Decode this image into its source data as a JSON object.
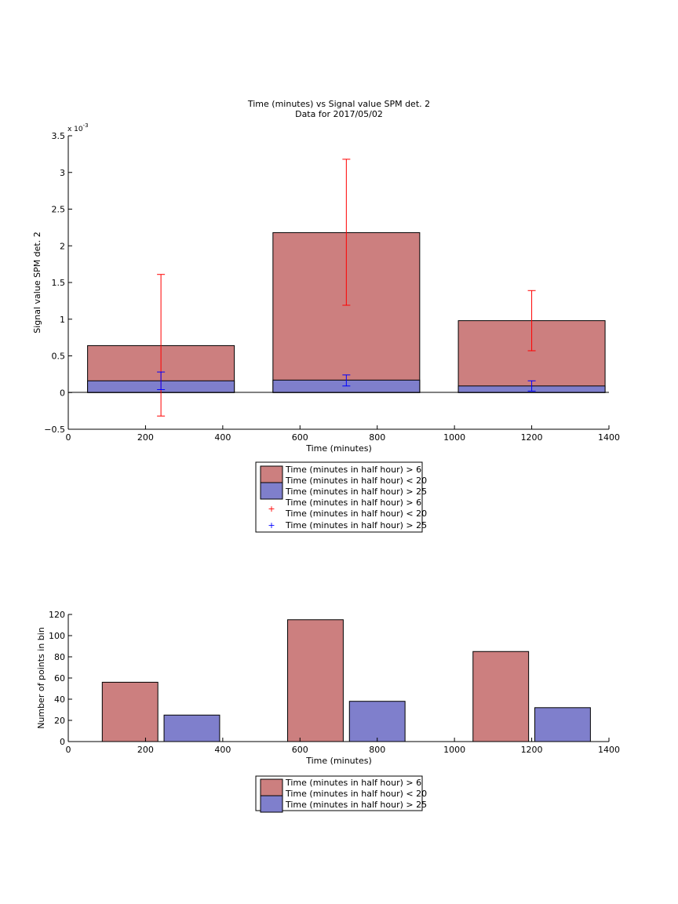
{
  "chart_data": [
    {
      "type": "bar",
      "title": "Time (minutes) vs Signal value SPM det. 2",
      "subtitle": "Data for 2017/05/02",
      "xlabel": "Time (minutes)",
      "ylabel": "Signal value SPM det. 2",
      "exponent_label": "x 10",
      "exponent_power": "-3",
      "xlim": [
        0,
        1400
      ],
      "ylim": [
        -0.5,
        3.5
      ],
      "xticks": [
        0,
        200,
        400,
        600,
        800,
        1000,
        1200,
        1400
      ],
      "yticks": [
        -0.5,
        0,
        0.5,
        1,
        1.5,
        2,
        2.5,
        3,
        3.5
      ],
      "xtick_labels": [
        "0",
        "200",
        "400",
        "600",
        "800",
        "1000",
        "1200",
        "1400"
      ],
      "ytick_labels": [
        "−0.5",
        "0",
        "0.5",
        "1",
        "1.5",
        "2",
        "2.5",
        "3",
        "3.5"
      ],
      "categories": [
        240,
        720,
        1200
      ],
      "series": [
        {
          "name": "Time (minutes in half hour) > 6",
          "name_line2": "Time (minutes in half hour) < 20",
          "color": "#cc7f7f",
          "values": [
            0.64,
            2.18,
            0.98
          ],
          "err_low": [
            -0.32,
            1.19,
            0.57
          ],
          "err_high": [
            1.61,
            3.18,
            1.39
          ],
          "err_color": "#ff0000"
        },
        {
          "name": "Time (minutes in half hour) > 25",
          "color": "#7f7fcc",
          "values": [
            0.16,
            0.17,
            0.09
          ],
          "err_low": [
            0.04,
            0.09,
            0.02
          ],
          "err_high": [
            0.28,
            0.24,
            0.16
          ],
          "err_color": "#0000ff"
        }
      ],
      "legend_entries": [
        "Time (minutes in half hour) > 6",
        "Time (minutes in half hour) < 20",
        "Time (minutes in half hour) > 25",
        "Time (minutes in half hour) > 6",
        "Time (minutes in half hour) < 20",
        "Time (minutes in half hour) > 25"
      ],
      "legend_placement": "below-center",
      "grid": false
    },
    {
      "type": "bar",
      "xlabel": "Time (minutes)",
      "ylabel": "Number of points in bin",
      "xlim": [
        0,
        1400
      ],
      "ylim": [
        0,
        120
      ],
      "xticks": [
        0,
        200,
        400,
        600,
        800,
        1000,
        1200,
        1400
      ],
      "yticks": [
        0,
        20,
        40,
        60,
        80,
        100,
        120
      ],
      "xtick_labels": [
        "0",
        "200",
        "400",
        "600",
        "800",
        "1000",
        "1200",
        "1400"
      ],
      "ytick_labels": [
        "0",
        "20",
        "40",
        "60",
        "80",
        "100",
        "120"
      ],
      "series": [
        {
          "name": "Time (minutes in half hour) > 6",
          "name_line2": "Time (minutes in half hour) < 20",
          "color": "#cc7f7f",
          "x": [
            160,
            640,
            1120
          ],
          "values": [
            56,
            115,
            85
          ]
        },
        {
          "name": "Time (minutes in half hour) > 25",
          "color": "#7f7fcc",
          "x": [
            320,
            800,
            1280
          ],
          "values": [
            25,
            38,
            32
          ]
        }
      ],
      "legend_entries": [
        "Time (minutes in half hour) > 6",
        "Time (minutes in half hour) < 20",
        "Time (minutes in half hour) > 25"
      ],
      "legend_placement": "below-center",
      "grid": false
    }
  ]
}
